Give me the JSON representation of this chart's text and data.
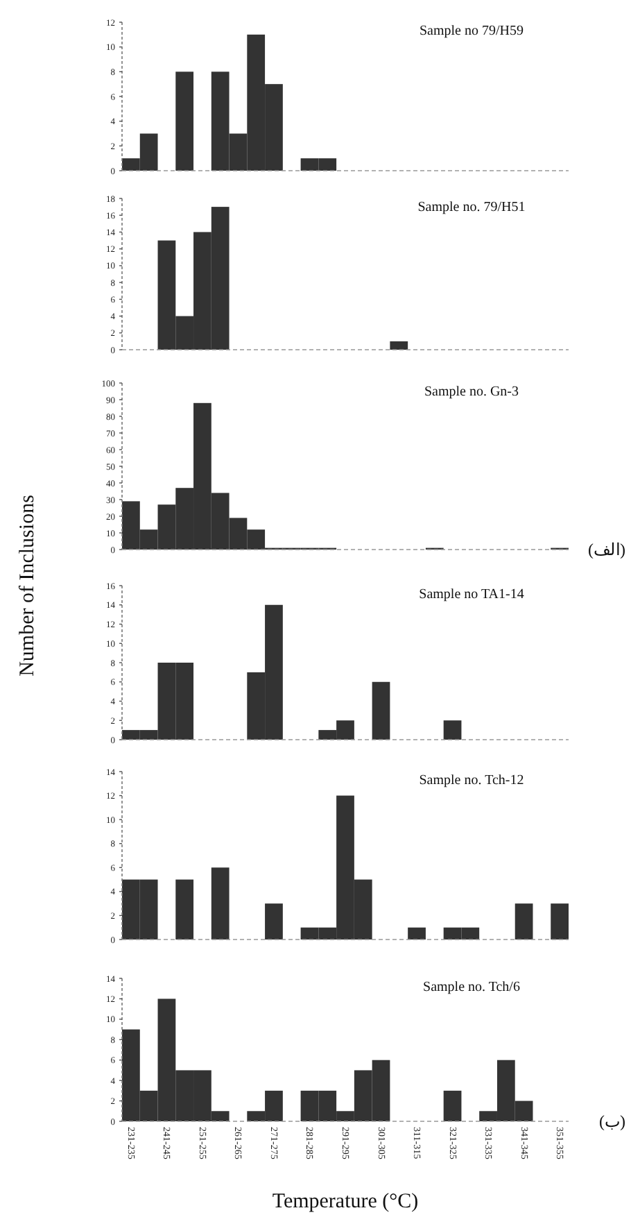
{
  "chart_data": [
    {
      "type": "bar",
      "title": "Sample no 79/H59",
      "categories": [
        null,
        null,
        null,
        null,
        null,
        null,
        null,
        null,
        null,
        null,
        null,
        null,
        null,
        null,
        null,
        null,
        null,
        null,
        null,
        null,
        null,
        null,
        null,
        null,
        null
      ],
      "values": [
        1,
        3,
        0,
        8,
        0,
        8,
        3,
        11,
        7,
        0,
        1,
        1,
        0,
        0,
        0,
        0,
        0,
        0,
        0,
        0,
        0,
        0,
        0,
        0,
        0
      ],
      "color": "#333333",
      "ylim": [
        0,
        12
      ],
      "yticks": [
        0,
        2,
        4,
        6,
        8,
        10,
        12
      ]
    },
    {
      "type": "bar",
      "title": "Sample no. 79/H51",
      "categories": [
        null,
        null,
        null,
        null,
        null,
        null,
        null,
        null,
        null,
        null,
        null,
        null,
        null,
        null,
        null,
        null,
        null,
        null,
        null,
        null,
        null,
        null,
        null,
        null,
        null
      ],
      "values": [
        0,
        0,
        13,
        4,
        14,
        17,
        0,
        0,
        0,
        0,
        0,
        0,
        0,
        0,
        0,
        1,
        0,
        0,
        0,
        0,
        0,
        0,
        0,
        0,
        0
      ],
      "color": "#333333",
      "ylim": [
        0,
        18
      ],
      "yticks": [
        0,
        2,
        4,
        6,
        8,
        10,
        12,
        14,
        16,
        18
      ]
    },
    {
      "type": "bar",
      "title": "Sample no. Gn-3",
      "categories": [
        null,
        null,
        null,
        null,
        null,
        null,
        null,
        null,
        null,
        null,
        null,
        null,
        null,
        null,
        null,
        null,
        null,
        null,
        null,
        null,
        null,
        null,
        null,
        null,
        null
      ],
      "values": [
        29,
        12,
        27,
        37,
        88,
        34,
        19,
        12,
        1,
        1,
        1,
        1,
        0,
        0,
        0,
        0,
        0,
        1,
        0,
        0,
        0,
        0,
        0,
        0,
        1
      ],
      "color": "#333333",
      "ylim": [
        0,
        100
      ],
      "yticks": [
        0,
        10,
        20,
        30,
        40,
        50,
        60,
        70,
        80,
        90,
        100
      ],
      "annotations": [
        "(الف)"
      ]
    },
    {
      "type": "bar",
      "title": "Sample no TA1-14",
      "ylabel": "Number of Inclusions",
      "categories": [
        null,
        null,
        null,
        null,
        null,
        null,
        null,
        null,
        null,
        null,
        null,
        null,
        null,
        null,
        null,
        null,
        null,
        null,
        null,
        null,
        null,
        null,
        null,
        null,
        null
      ],
      "values": [
        1,
        1,
        8,
        8,
        0,
        0,
        0,
        7,
        14,
        0,
        0,
        1,
        2,
        0,
        6,
        0,
        0,
        0,
        2,
        0,
        0,
        0,
        0,
        0,
        0
      ],
      "color": "#333333",
      "ylim": [
        0,
        16
      ],
      "yticks": [
        0,
        2,
        4,
        6,
        8,
        10,
        12,
        14,
        16
      ]
    },
    {
      "type": "bar",
      "title": "Sample no. Tch-12",
      "categories": [
        null,
        null,
        null,
        null,
        null,
        null,
        null,
        null,
        null,
        null,
        null,
        null,
        null,
        null,
        null,
        null,
        null,
        null,
        null,
        null,
        null,
        null,
        null,
        null,
        null
      ],
      "values": [
        5,
        5,
        0,
        5,
        0,
        6,
        0,
        0,
        3,
        0,
        1,
        1,
        12,
        5,
        0,
        0,
        1,
        0,
        1,
        1,
        0,
        0,
        3,
        0,
        3
      ],
      "color": "#333333",
      "ylim": [
        0,
        14
      ],
      "yticks": [
        0,
        2,
        4,
        6,
        8,
        10,
        12,
        14
      ]
    },
    {
      "type": "bar",
      "title": "Sample no. Tch/6",
      "xlabel": "Temperature (°C)",
      "categories": [
        "231-235",
        null,
        "241-245",
        null,
        "251-255",
        null,
        "261-265",
        null,
        "271-275",
        null,
        "281-285",
        null,
        "291-295",
        null,
        "301-305",
        null,
        "311-315",
        null,
        "321-325",
        null,
        "331-335",
        null,
        "341-345",
        null,
        "351-355"
      ],
      "values": [
        9,
        3,
        12,
        5,
        5,
        1,
        0,
        1,
        3,
        0,
        3,
        3,
        1,
        5,
        6,
        0,
        0,
        0,
        3,
        0,
        1,
        6,
        2,
        0,
        0
      ],
      "color": "#333333",
      "ylim": [
        0,
        14
      ],
      "yticks": [
        0,
        2,
        4,
        6,
        8,
        10,
        12,
        14
      ],
      "annotations": [
        "(ب)"
      ]
    }
  ]
}
